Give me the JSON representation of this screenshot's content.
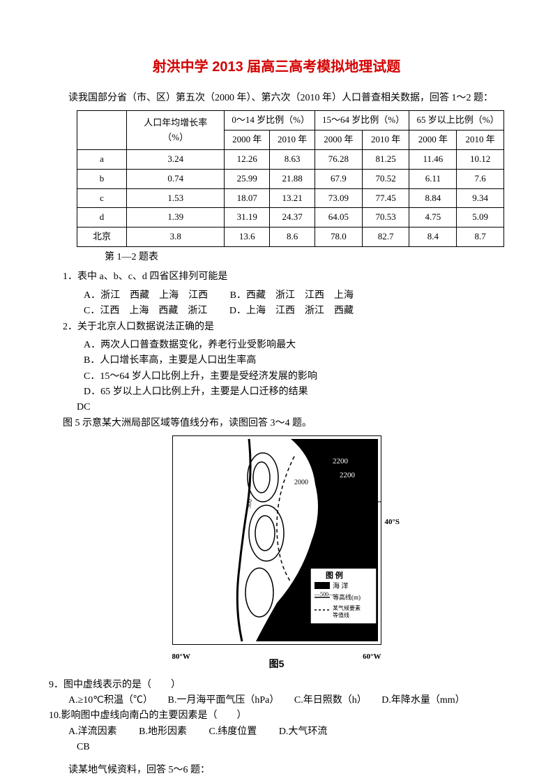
{
  "title": "射洪中学 2013 届高三高考模拟地理试题",
  "intro": "读我国部分省（市、区）第五次（2000 年）、第六次（2010 年）人口普查相关数据，回答 1～2 题：",
  "table": {
    "h_growth": "人口年均增长率（%）",
    "h_0_14": "0～14 岁比例（%）",
    "h_15_64": "15～64 岁比例（%）",
    "h_65": "65 岁以上比例（%）",
    "y2000": "2000 年",
    "y2010": "2010 年",
    "rows": [
      {
        "name": "a",
        "g": "3.24",
        "a0": "12.26",
        "a1": "8.63",
        "b0": "76.28",
        "b1": "81.25",
        "c0": "11.46",
        "c1": "10.12"
      },
      {
        "name": "b",
        "g": "0.74",
        "a0": "25.99",
        "a1": "21.88",
        "b0": "67.9",
        "b1": "70.52",
        "c0": "6.11",
        "c1": "7.6"
      },
      {
        "name": "c",
        "g": "1.53",
        "a0": "18.07",
        "a1": "13.21",
        "b0": "73.09",
        "b1": "77.45",
        "c0": "8.84",
        "c1": "9.34"
      },
      {
        "name": "d",
        "g": "1.39",
        "a0": "31.19",
        "a1": "24.37",
        "b0": "64.05",
        "b1": "70.53",
        "c0": "4.75",
        "c1": "5.09"
      },
      {
        "name": "北京",
        "g": "3.8",
        "a0": "13.6",
        "a1": "8.6",
        "b0": "78.0",
        "b1": "82.7",
        "c0": "8.4",
        "c1": "8.7"
      }
    ],
    "caption": "第 1—2 题表"
  },
  "q1": {
    "stem": "1．表中 a、b、c、d 四省区排列可能是",
    "A": "A．浙江　西藏　上海　江西",
    "B": "B．西藏　浙江　江西　上海",
    "C": "C．江西　上海　西藏　浙江",
    "D": "D．上海　江西　浙江　西藏"
  },
  "q2": {
    "stem": "2．关于北京人口数据说法正确的是",
    "A": "A．两次人口普查数据变化，养老行业受影响最大",
    "B": "B．人口增长率高，主要是人口出生率高",
    "C": "C．15～64 岁人口比例上升，主要是受经济发展的影响",
    "D": "D．65 岁以上人口比例上升，主要是人口迁移的结果",
    "ans": "DC"
  },
  "fig_intro": "图 5 示意某大洲局部区域等值线分布，读图回答 3～4 题。",
  "fig_label": "图5",
  "map": {
    "lon_left": "80°W",
    "lon_right": "60°W",
    "lat": "40°S",
    "legend_title": "图  例",
    "legend_ocean": "海  洋",
    "legend_contour": "等高线(m)",
    "legend_iso": "某气候要素等值线",
    "v2200": "2200",
    "v2000": "2000",
    "v500": "500"
  },
  "q9": {
    "stem": "9．图中虚线表示的是（　　）",
    "A": "A.≥10℃积温（℃）",
    "B": "B.一月海平面气压（hPa）",
    "C": "C.年日照数（h）",
    "D": "D.年降水量（mm）"
  },
  "q10": {
    "stem": "10.影响图中虚线向南凸的主要因素是（　　）",
    "A": "A.洋流因素",
    "B": "B.地形因素",
    "C": "C.纬度位置",
    "D": "D.大气环流",
    "ans": "CB"
  },
  "next": "读某地气候资料，回答 5～6 题："
}
